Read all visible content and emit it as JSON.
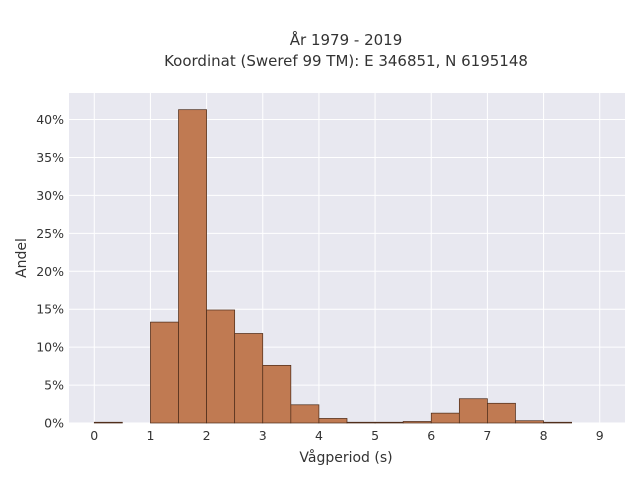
{
  "chart_data": {
    "type": "bar",
    "title_line1": "År 1979 - 2019",
    "title_line2": "Koordinat (Sweref 99 TM): E 346851, N 6195148",
    "xlabel": "Vågperiod (s)",
    "ylabel": "Andel",
    "bin_width": 0.5,
    "bins": [
      {
        "start": 0.0,
        "value": 0.1
      },
      {
        "start": 1.0,
        "value": 13.3
      },
      {
        "start": 1.5,
        "value": 41.3
      },
      {
        "start": 2.0,
        "value": 14.9
      },
      {
        "start": 2.5,
        "value": 11.8
      },
      {
        "start": 3.0,
        "value": 7.6
      },
      {
        "start": 3.5,
        "value": 2.4
      },
      {
        "start": 4.0,
        "value": 0.6
      },
      {
        "start": 4.5,
        "value": 0.1
      },
      {
        "start": 5.0,
        "value": 0.1
      },
      {
        "start": 5.5,
        "value": 0.2
      },
      {
        "start": 6.0,
        "value": 1.3
      },
      {
        "start": 6.5,
        "value": 3.2
      },
      {
        "start": 7.0,
        "value": 2.6
      },
      {
        "start": 7.5,
        "value": 0.3
      },
      {
        "start": 8.0,
        "value": 0.1
      }
    ],
    "xlim": [
      -0.45,
      9.45
    ],
    "ylim": [
      0,
      43.5
    ],
    "xticks": [
      0,
      1,
      2,
      3,
      4,
      5,
      6,
      7,
      8,
      9
    ],
    "xtick_labels": [
      "0",
      "1",
      "2",
      "3",
      "4",
      "5",
      "6",
      "7",
      "8",
      "9"
    ],
    "yticks": [
      0,
      5,
      10,
      15,
      20,
      25,
      30,
      35,
      40
    ],
    "ytick_labels": [
      "0%",
      "5%",
      "10%",
      "15%",
      "20%",
      "25%",
      "30%",
      "35%",
      "40%"
    ],
    "grid": true,
    "colors": {
      "bar_fill": "#c07a52",
      "bar_edge": "#4a2a18",
      "plot_bg": "#e8e8f0",
      "grid": "#ffffff"
    }
  }
}
